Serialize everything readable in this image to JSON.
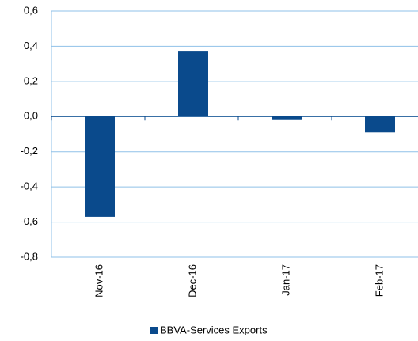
{
  "chart_data": {
    "type": "bar",
    "categories": [
      "Nov-16",
      "Dec-16",
      "Jan-17",
      "Feb-17"
    ],
    "series": [
      {
        "name": "BBVA-Services Exports",
        "color": "#0a4a8c",
        "values": [
          -0.57,
          0.37,
          -0.02,
          -0.09
        ]
      }
    ],
    "ylim": [
      -0.8,
      0.6
    ],
    "yticks": [
      {
        "value": -0.8,
        "label": "-0,8"
      },
      {
        "value": -0.6,
        "label": "-0,6"
      },
      {
        "value": -0.4,
        "label": "-0,4"
      },
      {
        "value": -0.2,
        "label": "-0,2"
      },
      {
        "value": 0,
        "label": "0,0"
      },
      {
        "value": 0.2,
        "label": "0,2"
      },
      {
        "value": 0.4,
        "label": "0,4"
      },
      {
        "value": 0.6,
        "label": "0,6"
      }
    ],
    "grid": true
  }
}
